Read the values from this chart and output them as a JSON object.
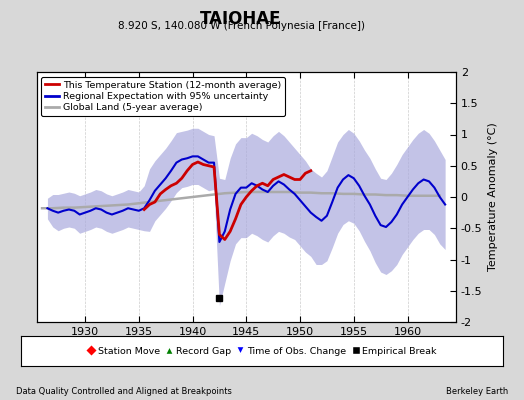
{
  "title": "TAIOHAE",
  "subtitle": "8.920 S, 140.080 W (French Polynesia [France])",
  "ylabel": "Temperature Anomaly (°C)",
  "xlim": [
    1925.5,
    1964.5
  ],
  "ylim": [
    -2,
    2
  ],
  "yticks": [
    -2,
    -1.5,
    -1,
    -0.5,
    0,
    0.5,
    1,
    1.5,
    2
  ],
  "xticks": [
    1930,
    1935,
    1940,
    1945,
    1950,
    1955,
    1960
  ],
  "footer_left": "Data Quality Controlled and Aligned at Breakpoints",
  "footer_right": "Berkeley Earth",
  "bg_color": "#d8d8d8",
  "plot_bg_color": "#ffffff",
  "red_line_color": "#cc0000",
  "blue_line_color": "#0000cc",
  "blue_fill_color": "#aaaadd",
  "gray_line_color": "#aaaaaa",
  "empirical_break_x": 1942.5,
  "empirical_break_y": -1.62,
  "legend_in_items": [
    {
      "color": "#cc0000",
      "label": "This Temperature Station (12-month average)"
    },
    {
      "color": "#0000cc",
      "label": "Regional Expectation with 95% uncertainty"
    },
    {
      "color": "#aaaaaa",
      "label": "Global Land (5-year average)"
    }
  ],
  "legend_bot_items": [
    {
      "marker": "D",
      "color": "red",
      "label": "Station Move"
    },
    {
      "marker": "^",
      "color": "green",
      "label": "Record Gap"
    },
    {
      "marker": "v",
      "color": "blue",
      "label": "Time of Obs. Change"
    },
    {
      "marker": "s",
      "color": "black",
      "label": "Empirical Break"
    }
  ],
  "blue_x": [
    1926.5,
    1927.0,
    1927.5,
    1928.0,
    1928.5,
    1929.0,
    1929.5,
    1930.0,
    1930.5,
    1931.0,
    1931.5,
    1932.0,
    1932.5,
    1933.0,
    1933.5,
    1934.0,
    1934.5,
    1935.0,
    1935.5,
    1936.0,
    1936.5,
    1937.0,
    1937.5,
    1938.0,
    1938.5,
    1939.0,
    1939.5,
    1940.0,
    1940.5,
    1941.0,
    1941.5,
    1942.0,
    1942.5,
    1943.0,
    1943.5,
    1944.0,
    1944.5,
    1945.0,
    1945.5,
    1946.0,
    1946.5,
    1947.0,
    1947.5,
    1948.0,
    1948.5,
    1949.0,
    1949.5,
    1950.0,
    1950.5,
    1951.0,
    1951.5,
    1952.0,
    1952.5,
    1953.0,
    1953.5,
    1954.0,
    1954.5,
    1955.0,
    1955.5,
    1956.0,
    1956.5,
    1957.0,
    1957.5,
    1958.0,
    1958.5,
    1959.0,
    1959.5,
    1960.0,
    1960.5,
    1961.0,
    1961.5,
    1962.0,
    1962.5,
    1963.0,
    1963.5
  ],
  "blue_y": [
    -0.18,
    -0.22,
    -0.25,
    -0.22,
    -0.2,
    -0.22,
    -0.28,
    -0.25,
    -0.22,
    -0.18,
    -0.2,
    -0.25,
    -0.28,
    -0.25,
    -0.22,
    -0.18,
    -0.2,
    -0.22,
    -0.18,
    -0.05,
    0.1,
    0.2,
    0.3,
    0.42,
    0.55,
    0.6,
    0.62,
    0.65,
    0.65,
    0.6,
    0.55,
    0.55,
    -0.72,
    -0.55,
    -0.2,
    0.05,
    0.15,
    0.15,
    0.22,
    0.18,
    0.12,
    0.08,
    0.18,
    0.25,
    0.2,
    0.12,
    0.05,
    -0.05,
    -0.15,
    -0.25,
    -0.32,
    -0.38,
    -0.3,
    -0.08,
    0.15,
    0.28,
    0.35,
    0.3,
    0.18,
    0.02,
    -0.12,
    -0.3,
    -0.45,
    -0.48,
    -0.4,
    -0.28,
    -0.12,
    0.0,
    0.12,
    0.22,
    0.28,
    0.25,
    0.15,
    0.0,
    -0.12
  ],
  "blue_upper": [
    -0.02,
    0.04,
    0.04,
    0.06,
    0.08,
    0.06,
    0.02,
    0.05,
    0.08,
    0.12,
    0.1,
    0.05,
    0.02,
    0.05,
    0.08,
    0.12,
    0.1,
    0.08,
    0.18,
    0.45,
    0.58,
    0.68,
    0.78,
    0.9,
    1.03,
    1.05,
    1.07,
    1.1,
    1.1,
    1.05,
    1.0,
    0.98,
    0.3,
    0.28,
    0.62,
    0.85,
    0.95,
    0.95,
    1.02,
    0.98,
    0.92,
    0.88,
    0.98,
    1.05,
    0.98,
    0.88,
    0.78,
    0.68,
    0.58,
    0.45,
    0.38,
    0.32,
    0.42,
    0.65,
    0.88,
    1.0,
    1.08,
    1.02,
    0.9,
    0.75,
    0.62,
    0.45,
    0.3,
    0.28,
    0.38,
    0.52,
    0.68,
    0.8,
    0.92,
    1.02,
    1.08,
    1.02,
    0.9,
    0.75,
    0.6
  ],
  "blue_lower": [
    -0.35,
    -0.48,
    -0.54,
    -0.5,
    -0.48,
    -0.5,
    -0.58,
    -0.55,
    -0.52,
    -0.48,
    -0.5,
    -0.55,
    -0.58,
    -0.55,
    -0.52,
    -0.48,
    -0.5,
    -0.52,
    -0.54,
    -0.55,
    -0.38,
    -0.28,
    -0.18,
    -0.06,
    0.07,
    0.15,
    0.17,
    0.2,
    0.2,
    0.15,
    0.1,
    0.12,
    -1.74,
    -1.38,
    -1.02,
    -0.75,
    -0.65,
    -0.65,
    -0.58,
    -0.62,
    -0.68,
    -0.72,
    -0.62,
    -0.55,
    -0.58,
    -0.64,
    -0.68,
    -0.78,
    -0.88,
    -0.95,
    -1.08,
    -1.08,
    -1.02,
    -0.81,
    -0.58,
    -0.44,
    -0.38,
    -0.42,
    -0.54,
    -0.71,
    -0.86,
    -1.05,
    -1.2,
    -1.24,
    -1.18,
    -1.08,
    -0.92,
    -0.8,
    -0.68,
    -0.58,
    -0.52,
    -0.52,
    -0.6,
    -0.75,
    -0.84
  ],
  "red_x": [
    1935.5,
    1936.0,
    1936.5,
    1937.0,
    1937.5,
    1938.0,
    1938.5,
    1939.0,
    1939.5,
    1940.0,
    1940.5,
    1941.0,
    1941.5,
    1942.0,
    1942.5,
    1943.0,
    1943.5,
    1944.0,
    1944.5,
    1945.0,
    1945.5,
    1946.0,
    1946.5,
    1947.0,
    1947.5,
    1948.0,
    1948.5,
    1949.0,
    1949.5,
    1950.0,
    1950.5,
    1951.0
  ],
  "red_y": [
    -0.2,
    -0.12,
    -0.08,
    0.05,
    0.12,
    0.18,
    0.22,
    0.3,
    0.42,
    0.52,
    0.56,
    0.52,
    0.5,
    0.48,
    -0.6,
    -0.68,
    -0.55,
    -0.35,
    -0.12,
    0.0,
    0.1,
    0.18,
    0.22,
    0.18,
    0.28,
    0.32,
    0.36,
    0.32,
    0.28,
    0.28,
    0.38,
    0.42
  ],
  "gray_x": [
    1926.0,
    1927.0,
    1928.0,
    1929.0,
    1930.0,
    1931.0,
    1932.0,
    1933.0,
    1934.0,
    1935.0,
    1936.0,
    1937.0,
    1938.0,
    1939.0,
    1940.0,
    1941.0,
    1942.0,
    1943.0,
    1944.0,
    1945.0,
    1946.0,
    1947.0,
    1948.0,
    1949.0,
    1950.0,
    1951.0,
    1952.0,
    1953.0,
    1954.0,
    1955.0,
    1956.0,
    1957.0,
    1958.0,
    1959.0,
    1960.0,
    1961.0,
    1962.0,
    1963.0
  ],
  "gray_y": [
    -0.18,
    -0.18,
    -0.17,
    -0.17,
    -0.16,
    -0.15,
    -0.14,
    -0.13,
    -0.12,
    -0.1,
    -0.08,
    -0.06,
    -0.04,
    -0.02,
    0.0,
    0.02,
    0.04,
    0.06,
    0.07,
    0.08,
    0.08,
    0.08,
    0.08,
    0.08,
    0.07,
    0.07,
    0.06,
    0.06,
    0.05,
    0.05,
    0.04,
    0.04,
    0.03,
    0.03,
    0.02,
    0.02,
    0.02,
    0.02
  ]
}
